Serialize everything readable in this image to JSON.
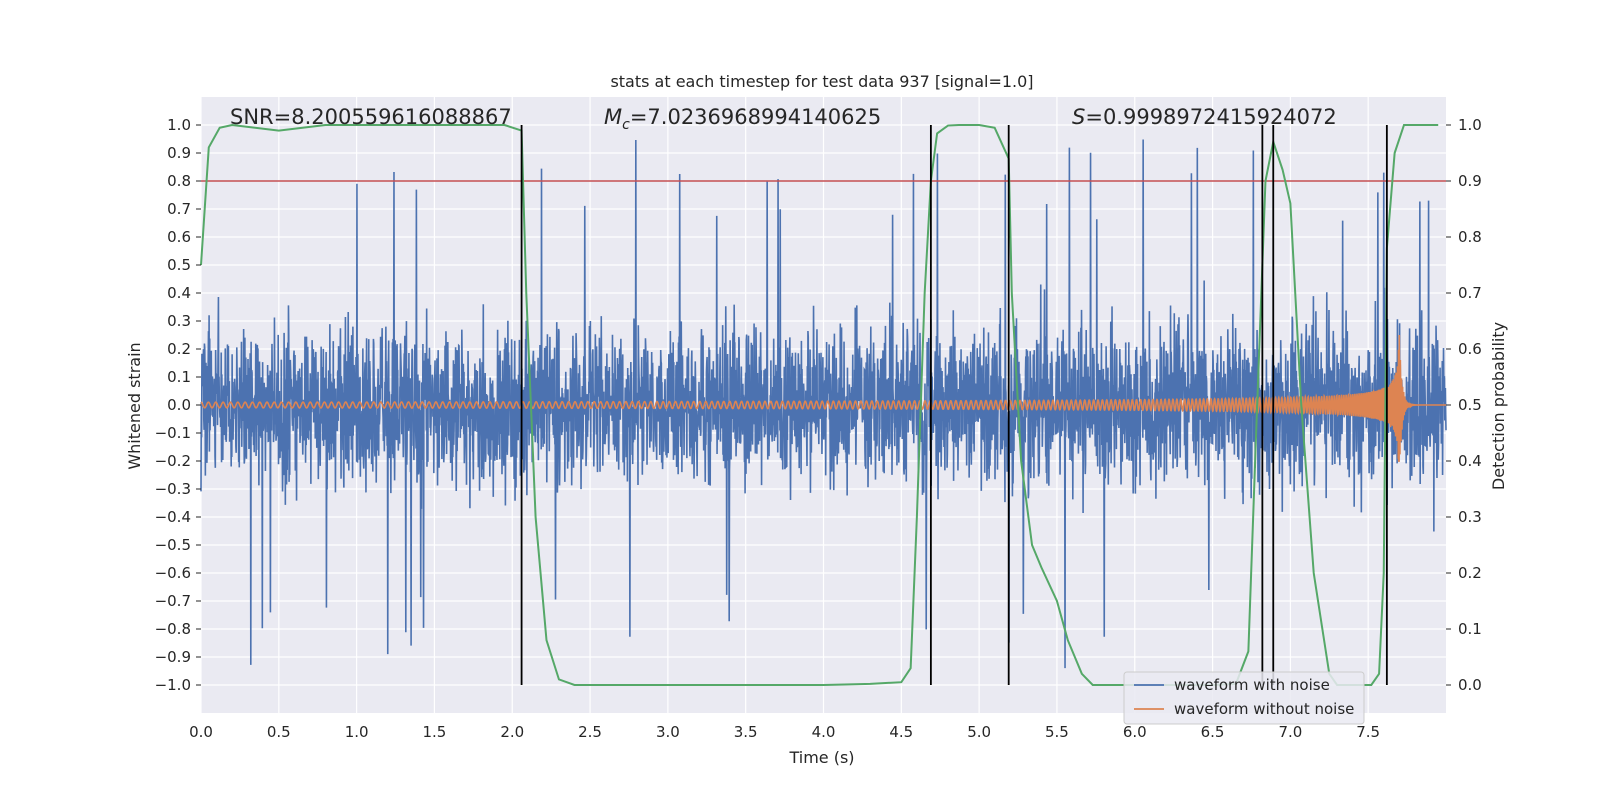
{
  "chart_data": {
    "type": "line",
    "title": "stats at each timestep for test data 937 [signal=1.0]",
    "xlabel": "Time (s)",
    "ylabel": "Whitened strain",
    "y2label": "Detection probability",
    "xlim": [
      0.0,
      8.0
    ],
    "ylim": [
      -1.1,
      1.1
    ],
    "y2lim": [
      -0.05,
      1.05
    ],
    "x_ticks": [
      "0.0",
      "0.5",
      "1.0",
      "1.5",
      "2.0",
      "2.5",
      "3.0",
      "3.5",
      "4.0",
      "4.5",
      "5.0",
      "5.5",
      "6.0",
      "6.5",
      "7.0",
      "7.5"
    ],
    "y_ticks": [
      "1.0",
      "0.9",
      "0.8",
      "0.7",
      "0.6",
      "0.5",
      "0.4",
      "0.3",
      "0.2",
      "0.1",
      "0.0",
      "−0.1",
      "−0.2",
      "−0.3",
      "−0.4",
      "−0.5",
      "−0.6",
      "−0.7",
      "−0.8",
      "−0.9",
      "−1.0"
    ],
    "y2_ticks": [
      "1.0",
      "0.9",
      "0.8",
      "0.7",
      "0.6",
      "0.5",
      "0.4",
      "0.3",
      "0.2",
      "0.1",
      "0.0"
    ],
    "annotations": {
      "snr": "SNR=8.200559616088867",
      "mc_symbol": "M",
      "mc_sub": "c",
      "mc_value": "=7.0236968994140625",
      "s_symbol": "S",
      "s_value": "=0.9998972415924072"
    },
    "threshold": {
      "value": 0.9,
      "axis": "y2",
      "color": "#c44e52"
    },
    "vertical_lines": [
      2.06,
      4.69,
      5.19,
      6.82,
      6.89,
      7.62
    ],
    "series": [
      {
        "name": "waveform with noise",
        "color": "#4c72b0",
        "axis": "y",
        "description": "whitened noisy strain, amplitude roughly within ±0.5 with spikes to ±1.0"
      },
      {
        "name": "waveform without noise",
        "color": "#dd8452",
        "axis": "y",
        "description": "chirp signal, amplitude growing from ~0.01 to ~0.25 peaking at t=7.7 s, then ringdown"
      },
      {
        "name": "detection probability",
        "color": "#55a868",
        "axis": "y2",
        "x": [
          0.0,
          0.05,
          0.12,
          0.2,
          0.5,
          0.8,
          1.0,
          1.5,
          1.95,
          2.06,
          2.09,
          2.15,
          2.22,
          2.3,
          2.4,
          2.55,
          3.0,
          3.5,
          4.0,
          4.3,
          4.5,
          4.56,
          4.6,
          4.65,
          4.69,
          4.73,
          4.8,
          4.87,
          5.0,
          5.1,
          5.19,
          5.21,
          5.27,
          5.34,
          5.4,
          5.5,
          5.57,
          5.66,
          5.73,
          6.0,
          6.5,
          6.65,
          6.73,
          6.78,
          6.84,
          6.89,
          6.95,
          7.0,
          7.07,
          7.15,
          7.25,
          7.3,
          7.52,
          7.57,
          7.6,
          7.62,
          7.67,
          7.73,
          7.8,
          7.95
        ],
        "y": [
          0.75,
          0.96,
          0.995,
          1.0,
          0.99,
          1.0,
          1.0,
          1.0,
          1.0,
          0.99,
          0.7,
          0.3,
          0.08,
          0.01,
          0.0,
          0.0,
          0.0,
          0.0,
          0.0,
          0.002,
          0.005,
          0.03,
          0.3,
          0.7,
          0.9,
          0.985,
          0.999,
          1.0,
          1.0,
          0.995,
          0.94,
          0.7,
          0.4,
          0.25,
          0.21,
          0.15,
          0.08,
          0.02,
          0.0,
          0.0,
          0.0,
          0.002,
          0.06,
          0.45,
          0.9,
          0.97,
          0.92,
          0.86,
          0.5,
          0.2,
          0.02,
          0.0,
          0.0,
          0.02,
          0.2,
          0.78,
          0.95,
          1.0,
          1.0,
          1.0
        ]
      }
    ],
    "legend": {
      "position": "lower-right",
      "entries": [
        "waveform with noise",
        "waveform without noise"
      ]
    },
    "grid": true
  },
  "colors": {
    "background": "#eaeaf2",
    "grid": "#ffffff",
    "noise": "#4c72b0",
    "signal": "#dd8452",
    "probability": "#55a868",
    "threshold": "#c44e52",
    "vline": "#000000"
  }
}
